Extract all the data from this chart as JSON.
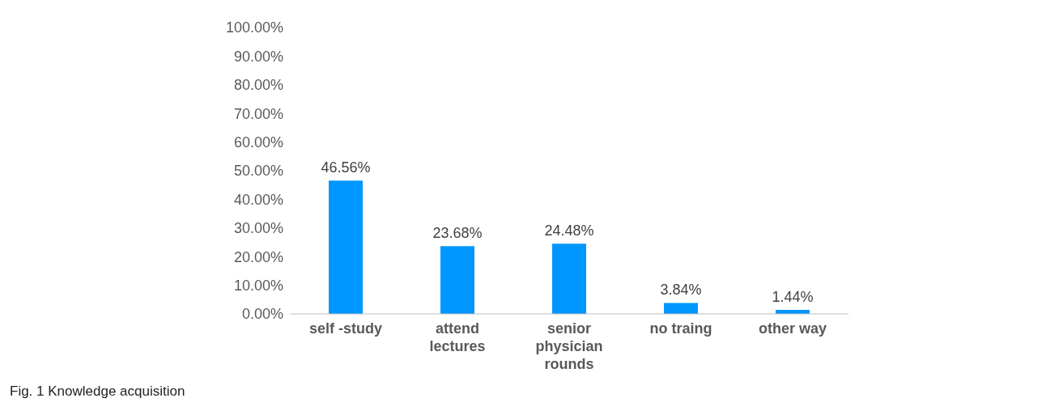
{
  "chart_data": {
    "type": "bar",
    "categories": [
      "self -study",
      "attend lectures",
      "senior physician rounds",
      "no traing",
      "other way"
    ],
    "values": [
      46.56,
      23.68,
      24.48,
      3.84,
      1.44
    ],
    "color": "#0096ff",
    "value_labels": [
      "46.56%",
      "23.68%",
      "24.48%",
      "3.84%",
      "1.44%"
    ],
    "ylim": [
      0,
      100
    ],
    "yticks": [
      {
        "value": 0,
        "label": "0.00%"
      },
      {
        "value": 10,
        "label": "10.00%"
      },
      {
        "value": 20,
        "label": "20.00%"
      },
      {
        "value": 30,
        "label": "30.00%"
      },
      {
        "value": 40,
        "label": "40.00%"
      },
      {
        "value": 50,
        "label": "50.00%"
      },
      {
        "value": 60,
        "label": "60.00%"
      },
      {
        "value": 70,
        "label": "70.00%"
      },
      {
        "value": 80,
        "label": "80.00%"
      },
      {
        "value": 90,
        "label": "90.00%"
      },
      {
        "value": 100,
        "label": "100.00%"
      }
    ],
    "annotations": [
      "Fig. 1 Knowledge acquisition"
    ]
  }
}
